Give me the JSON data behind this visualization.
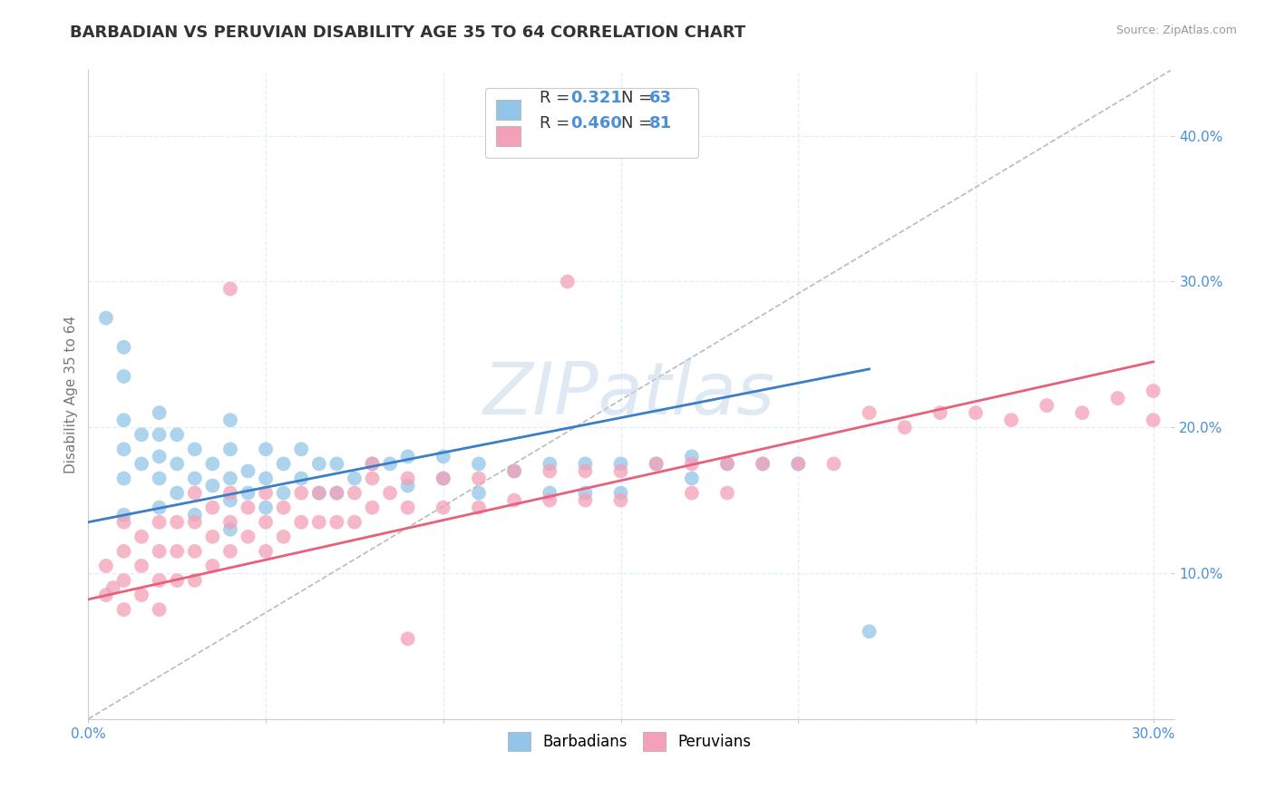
{
  "title": "BARBADIAN VS PERUVIAN DISABILITY AGE 35 TO 64 CORRELATION CHART",
  "source_text": "Source: ZipAtlas.com",
  "ylabel": "Disability Age 35 to 64",
  "xlim": [
    0.0,
    0.305
  ],
  "ylim": [
    0.0,
    0.445
  ],
  "xticks": [
    0.0,
    0.05,
    0.1,
    0.15,
    0.2,
    0.25,
    0.3
  ],
  "yticks": [
    0.0,
    0.1,
    0.2,
    0.3,
    0.4
  ],
  "barbadian_color": "#92C5E8",
  "peruvian_color": "#F4A0B8",
  "barbadian_line_color": "#3A7EC6",
  "peruvian_line_color": "#E8607A",
  "ref_line_color": "#BBBBBB",
  "R_barbadian": 0.321,
  "N_barbadian": 63,
  "R_peruvian": 0.46,
  "N_peruvian": 81,
  "watermark": "ZIPatlas",
  "watermark_color": "#C5D8EA",
  "barbadian_x": [
    0.005,
    0.01,
    0.01,
    0.01,
    0.01,
    0.01,
    0.01,
    0.015,
    0.015,
    0.02,
    0.02,
    0.02,
    0.02,
    0.02,
    0.025,
    0.025,
    0.025,
    0.03,
    0.03,
    0.03,
    0.035,
    0.035,
    0.04,
    0.04,
    0.04,
    0.04,
    0.04,
    0.045,
    0.045,
    0.05,
    0.05,
    0.05,
    0.055,
    0.055,
    0.06,
    0.06,
    0.065,
    0.065,
    0.07,
    0.07,
    0.075,
    0.08,
    0.085,
    0.09,
    0.09,
    0.1,
    0.1,
    0.11,
    0.11,
    0.12,
    0.13,
    0.13,
    0.14,
    0.14,
    0.15,
    0.15,
    0.16,
    0.17,
    0.17,
    0.18,
    0.19,
    0.2,
    0.22
  ],
  "barbadian_y": [
    0.275,
    0.255,
    0.235,
    0.205,
    0.185,
    0.165,
    0.14,
    0.195,
    0.175,
    0.21,
    0.195,
    0.18,
    0.165,
    0.145,
    0.195,
    0.175,
    0.155,
    0.185,
    0.165,
    0.14,
    0.175,
    0.16,
    0.205,
    0.185,
    0.165,
    0.15,
    0.13,
    0.17,
    0.155,
    0.185,
    0.165,
    0.145,
    0.175,
    0.155,
    0.185,
    0.165,
    0.175,
    0.155,
    0.175,
    0.155,
    0.165,
    0.175,
    0.175,
    0.18,
    0.16,
    0.18,
    0.165,
    0.175,
    0.155,
    0.17,
    0.175,
    0.155,
    0.175,
    0.155,
    0.175,
    0.155,
    0.175,
    0.18,
    0.165,
    0.175,
    0.175,
    0.175,
    0.06
  ],
  "peruvian_x": [
    0.005,
    0.005,
    0.007,
    0.01,
    0.01,
    0.01,
    0.01,
    0.015,
    0.015,
    0.015,
    0.02,
    0.02,
    0.02,
    0.02,
    0.025,
    0.025,
    0.025,
    0.03,
    0.03,
    0.03,
    0.03,
    0.035,
    0.035,
    0.035,
    0.04,
    0.04,
    0.04,
    0.045,
    0.045,
    0.05,
    0.05,
    0.05,
    0.055,
    0.055,
    0.06,
    0.06,
    0.065,
    0.065,
    0.07,
    0.07,
    0.075,
    0.075,
    0.08,
    0.08,
    0.085,
    0.09,
    0.09,
    0.1,
    0.1,
    0.11,
    0.11,
    0.12,
    0.12,
    0.13,
    0.13,
    0.14,
    0.14,
    0.15,
    0.15,
    0.16,
    0.17,
    0.17,
    0.18,
    0.18,
    0.19,
    0.2,
    0.21,
    0.22,
    0.23,
    0.24,
    0.25,
    0.26,
    0.27,
    0.28,
    0.29,
    0.3,
    0.3,
    0.04,
    0.08,
    0.09,
    0.135
  ],
  "peruvian_y": [
    0.105,
    0.085,
    0.09,
    0.115,
    0.095,
    0.075,
    0.135,
    0.125,
    0.105,
    0.085,
    0.135,
    0.115,
    0.095,
    0.075,
    0.135,
    0.115,
    0.095,
    0.155,
    0.135,
    0.115,
    0.095,
    0.145,
    0.125,
    0.105,
    0.155,
    0.135,
    0.115,
    0.145,
    0.125,
    0.155,
    0.135,
    0.115,
    0.145,
    0.125,
    0.155,
    0.135,
    0.155,
    0.135,
    0.155,
    0.135,
    0.155,
    0.135,
    0.165,
    0.145,
    0.155,
    0.165,
    0.145,
    0.165,
    0.145,
    0.165,
    0.145,
    0.17,
    0.15,
    0.17,
    0.15,
    0.17,
    0.15,
    0.17,
    0.15,
    0.175,
    0.175,
    0.155,
    0.175,
    0.155,
    0.175,
    0.175,
    0.175,
    0.21,
    0.2,
    0.21,
    0.21,
    0.205,
    0.215,
    0.21,
    0.22,
    0.225,
    0.205,
    0.295,
    0.175,
    0.055,
    0.3
  ],
  "grid_color": "#DDEEFF",
  "title_color": "#333333",
  "axis_label_color": "#777777",
  "tick_label_color": "#4A90D9"
}
